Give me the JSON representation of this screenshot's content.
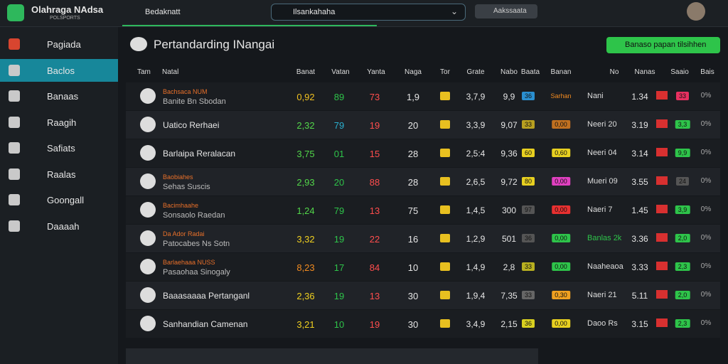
{
  "brand": {
    "name": "Olahraga NAdsa",
    "tagline": "POLSPORTS"
  },
  "topbar": {
    "tab": "Bedaknatt",
    "search": "Ilsankahaha",
    "button": "Aakssaata"
  },
  "sidebar": [
    "Pagiada",
    "Baclos",
    "Banaas",
    "Raagih",
    "Safiats",
    "Raalas",
    "Goongall",
    "Daaaah"
  ],
  "page_title": "Pertandarding INangai",
  "action": "Banaso papan tilsihhen",
  "table": {
    "headers": [
      "Tam",
      "Natal",
      "Banat",
      "Vatan",
      "Yanta",
      "Naga",
      "Tor",
      "Grate",
      "Nabo",
      "Baata",
      "Banan",
      "No",
      "Nanas",
      "Saaio",
      "Bais"
    ],
    "rows": [
      {
        "tag": "Bachsaca NUM",
        "name": "Banite Bn Sbodan",
        "cells": [
          "0,92",
          "89",
          "73",
          "1,9",
          "3,7,9",
          "9,9",
          "36",
          "Sarhan",
          "Nani",
          "1.34",
          "33",
          "0%"
        ]
      },
      {
        "tag": null,
        "name": "Uatico Rerhaei",
        "cells": [
          "2,32",
          "79",
          "19",
          "20",
          "3,3,9",
          "9,07",
          "33",
          "0,00",
          "Neeri 20",
          "3.19",
          "3,3",
          "0%"
        ]
      },
      {
        "tag": null,
        "name": "Barlaipa Reralacan",
        "cells": [
          "3,75",
          "01",
          "15",
          "28",
          "2,5:4",
          "9,36",
          "60",
          "0,60",
          "Neeri 04",
          "3.14",
          "9,9",
          "0%"
        ]
      },
      {
        "tag": "Baobiahes",
        "name": "Sehas Suscis",
        "cells": [
          "2,93",
          "20",
          "88",
          "28",
          "2,6,5",
          "9,72",
          "80",
          "0,00",
          "Mueri 09",
          "3.55",
          "24",
          "0%"
        ]
      },
      {
        "tag": "Bacimhaahe",
        "name": "Sonsaolo Raedan",
        "cells": [
          "1,24",
          "79",
          "13",
          "75",
          "1,4,5",
          "300",
          "97",
          "0,00",
          "Naeri 7",
          "1.45",
          "3,9",
          "0%"
        ]
      },
      {
        "tag": "Da Ador Radai",
        "name": "Patocabes Ns Sotn",
        "cells": [
          "3,32",
          "19",
          "22",
          "16",
          "1,2,9",
          "501",
          "36",
          "0,00",
          "Banlas 2k",
          "3.36",
          "2,0",
          "0%"
        ]
      },
      {
        "tag": "Barlaehaaa NUSS",
        "name": "Pasaohaa Sinogaly",
        "cells": [
          "8,23",
          "17",
          "84",
          "10",
          "1,4,9",
          "2,8",
          "33",
          "0,00",
          "Naaheaoa",
          "3.33",
          "2,3",
          "0%"
        ]
      },
      {
        "tag": null,
        "name": "Baaasaaaa Pertanganl",
        "cells": [
          "2,36",
          "19",
          "13",
          "30",
          "1,9,4",
          "7,35",
          "33",
          "0,30",
          "Naeri 21",
          "5.11",
          "2,0",
          "0%"
        ]
      },
      {
        "tag": null,
        "name": "Sanhandian Camenan",
        "cells": [
          "3,21",
          "10",
          "19",
          "30",
          "3,4,9",
          "2,15",
          "36",
          "0,00",
          "Daoo Rs",
          "3.15",
          "2,3",
          "0%"
        ]
      }
    ]
  }
}
